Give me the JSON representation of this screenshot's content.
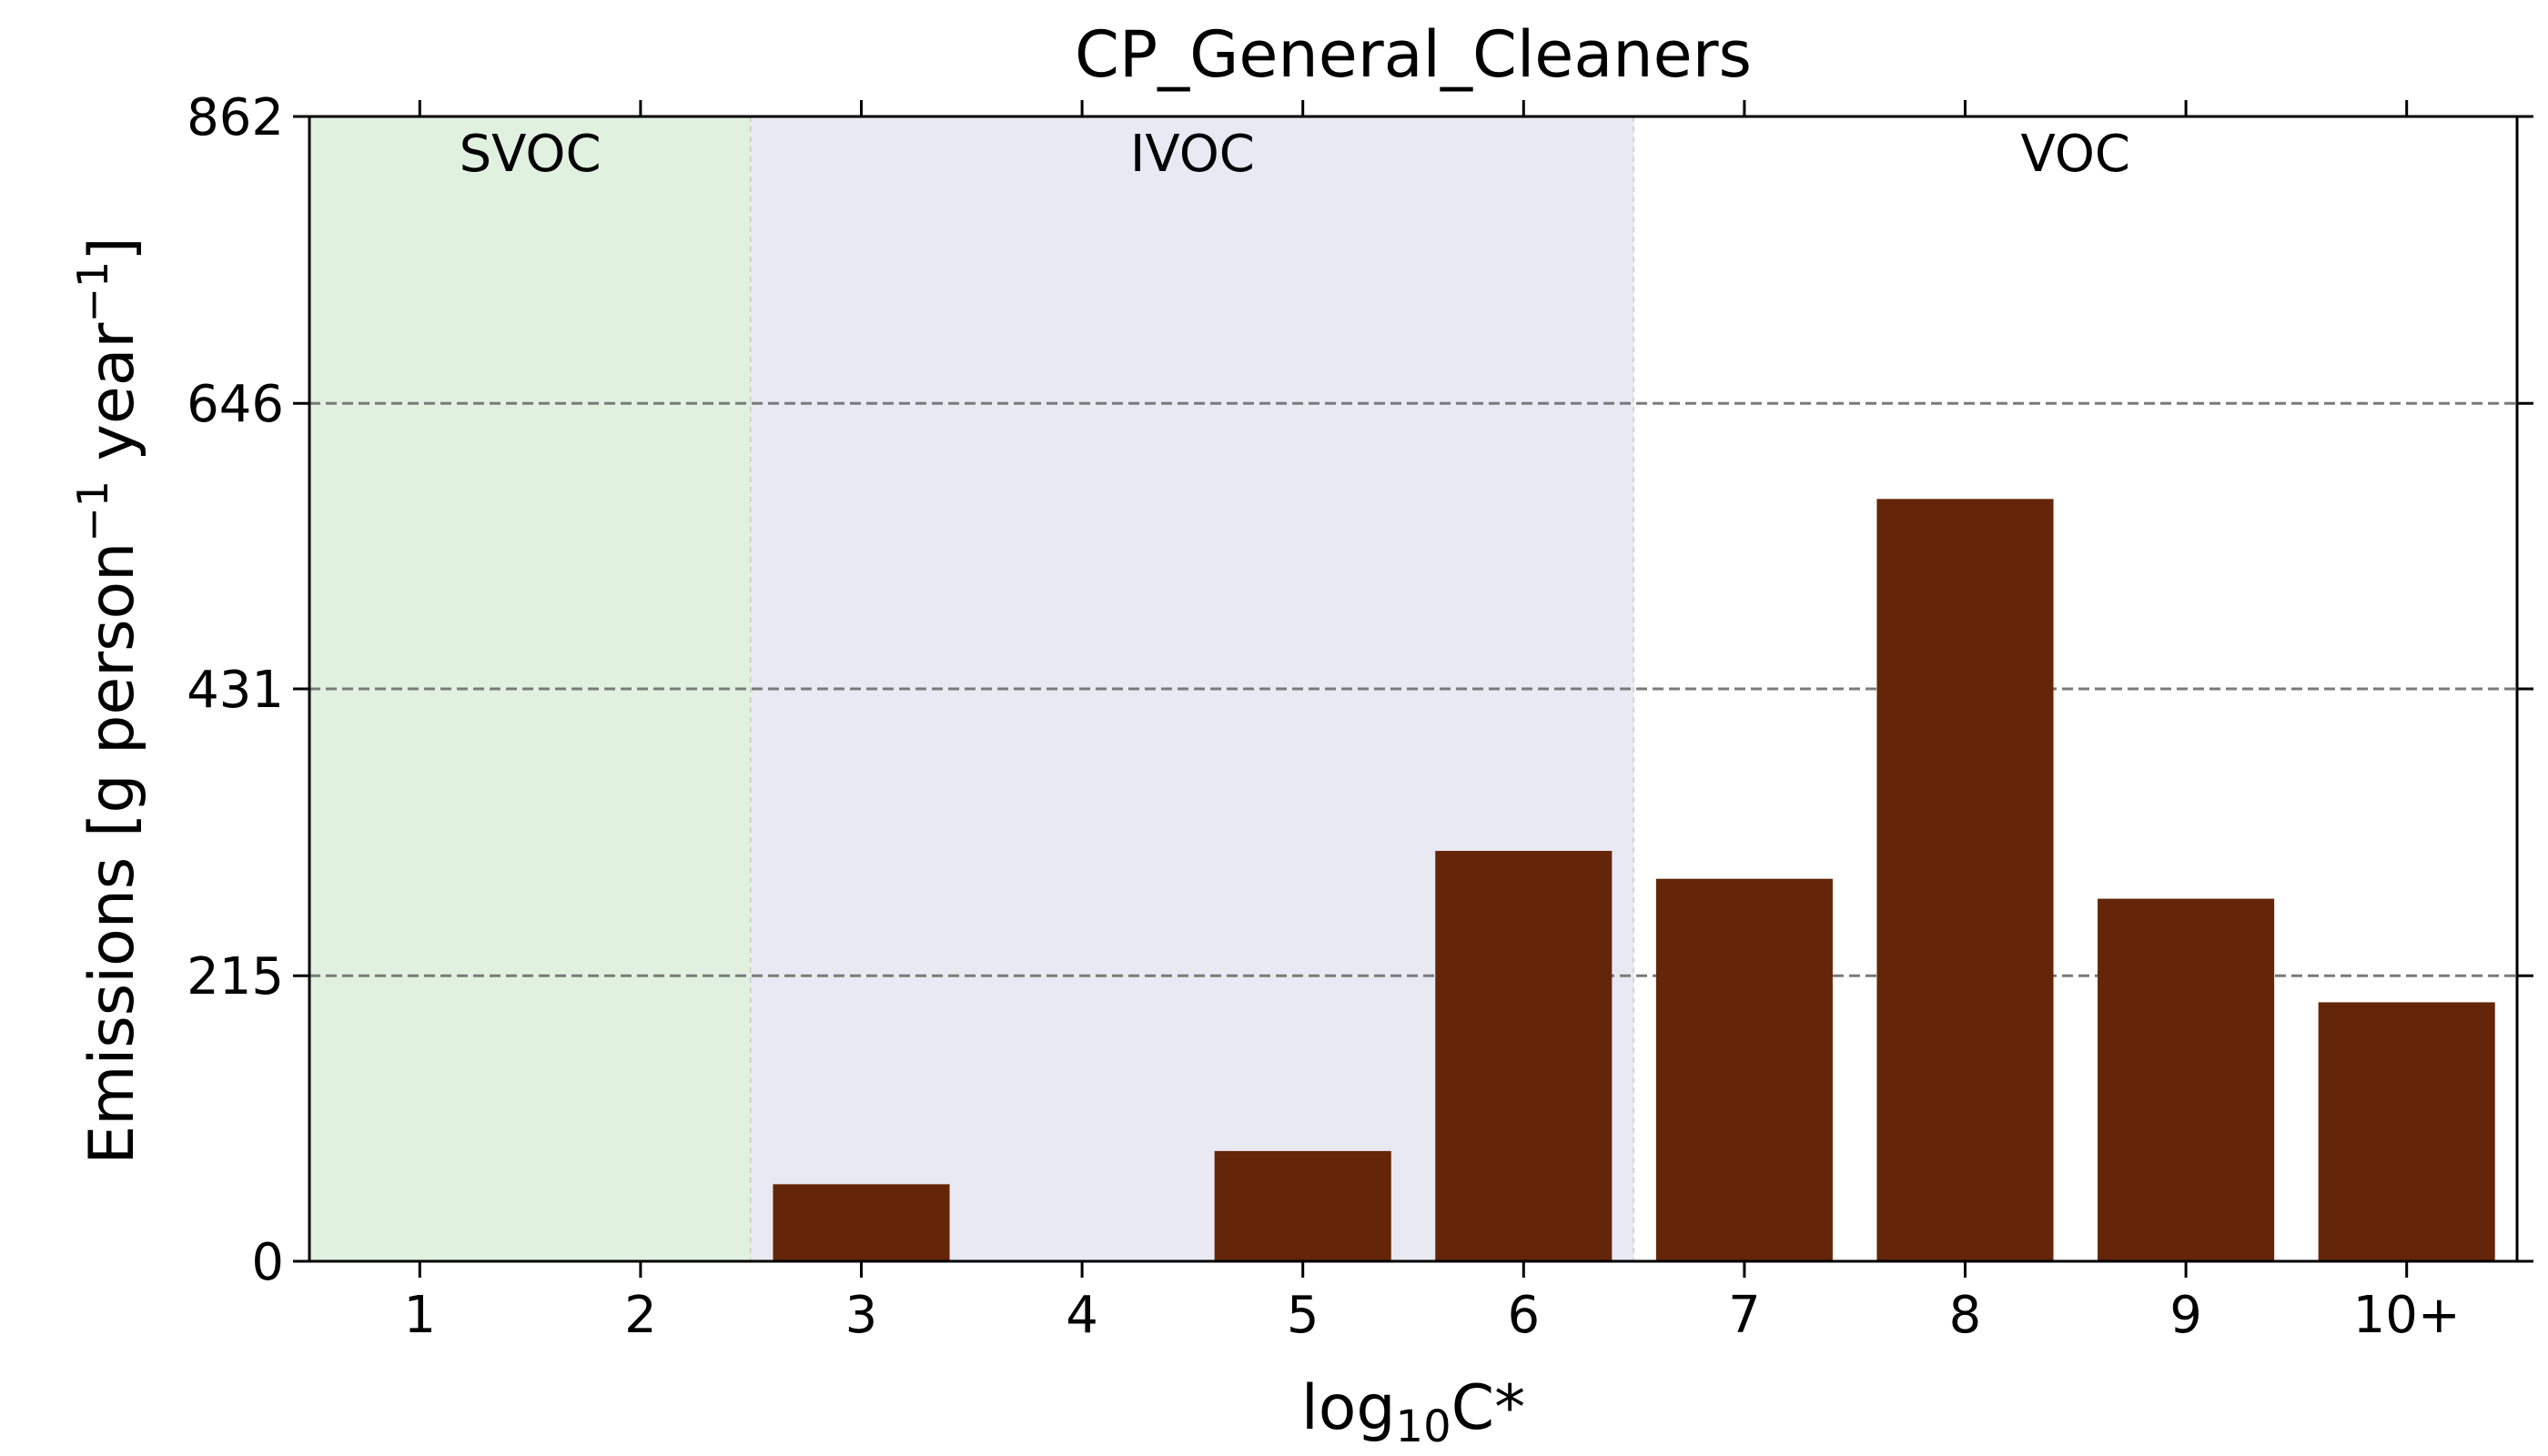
{
  "chart_data": {
    "type": "bar",
    "title": "CP_General_Cleaners",
    "xlabel_main": "log",
    "xlabel_sub": "10",
    "xlabel_tail": "C*",
    "ylabel_main": "Emissions [g person",
    "ylabel_sup1": "−1",
    "ylabel_mid": " year",
    "ylabel_sup2": "−1",
    "ylabel_end": "]",
    "categories": [
      "1",
      "2",
      "3",
      "4",
      "5",
      "6",
      "7",
      "8",
      "9",
      "10+"
    ],
    "values": [
      0,
      0,
      58,
      0,
      83,
      309,
      288,
      574,
      273,
      195
    ],
    "ylim": [
      0,
      862
    ],
    "yticks": [
      "0",
      "215",
      "431",
      "646",
      "862"
    ],
    "grid": "horizontal-dashed",
    "bar_color": "#652508",
    "regions": [
      {
        "label": "SVOC",
        "from": -0.5,
        "to": 1.5,
        "color": "#e1f1e0"
      },
      {
        "label": "IVOC",
        "from": 1.5,
        "to": 5.5,
        "color": "#e9e9f3"
      },
      {
        "label": "VOC",
        "from": 5.5,
        "to": 9.5,
        "color": "#ffffff"
      }
    ]
  }
}
